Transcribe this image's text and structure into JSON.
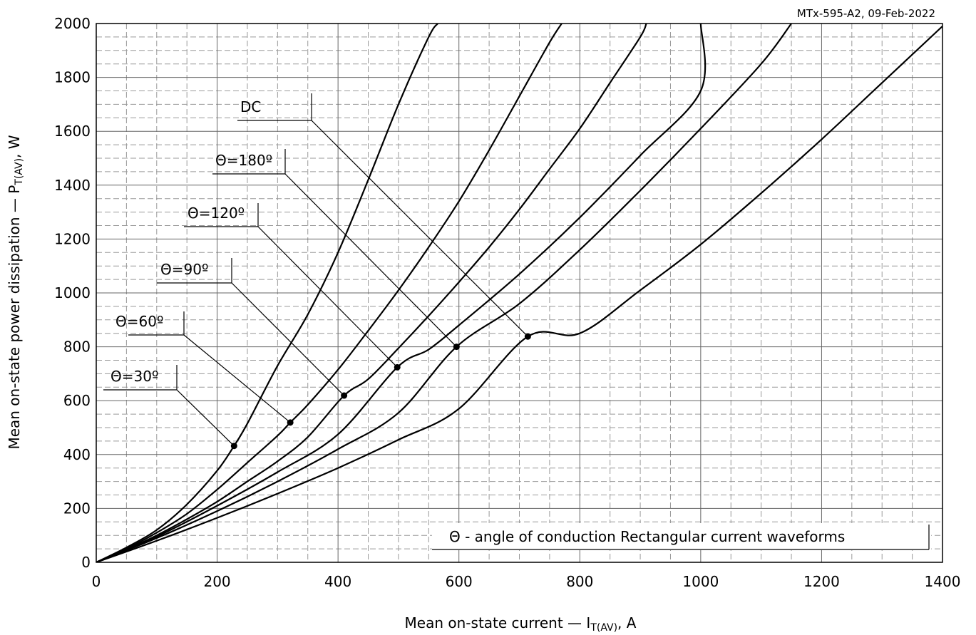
{
  "doc_ref": "MTx-595-A2, 09-Feb-2022",
  "chart_data": {
    "type": "line",
    "xlabel": {
      "main": "Mean on-state current — I",
      "sub": "T(AV)",
      "unit": ", A"
    },
    "ylabel": {
      "main": "Mean on-state power dissipation — P",
      "sub": "T(AV)",
      "unit": ", W"
    },
    "xlim": [
      0,
      1400
    ],
    "ylim": [
      0,
      2000
    ],
    "x_ticks": [
      0,
      200,
      400,
      600,
      800,
      1000,
      1200,
      1400
    ],
    "y_ticks": [
      0,
      200,
      400,
      600,
      800,
      1000,
      1200,
      1400,
      1600,
      1800,
      2000
    ],
    "x_minor_step": 50,
    "y_minor_step": 50,
    "grid": "major solid, minor dashed",
    "legend": "none",
    "series": [
      {
        "label": "Θ=30º",
        "marker": [
          228,
          432
        ],
        "points": [
          [
            0,
            0
          ],
          [
            50,
            55
          ],
          [
            100,
            120
          ],
          [
            150,
            215
          ],
          [
            200,
            340
          ],
          [
            228,
            432
          ],
          [
            250,
            515
          ],
          [
            300,
            730
          ],
          [
            350,
            920
          ],
          [
            400,
            1150
          ],
          [
            450,
            1420
          ],
          [
            500,
            1700
          ],
          [
            550,
            1950
          ],
          [
            565,
            2000
          ]
        ]
      },
      {
        "label": "Θ=60º",
        "marker": [
          321,
          519
        ],
        "points": [
          [
            0,
            0
          ],
          [
            50,
            50
          ],
          [
            100,
            110
          ],
          [
            150,
            180
          ],
          [
            200,
            270
          ],
          [
            250,
            370
          ],
          [
            300,
            470
          ],
          [
            321,
            519
          ],
          [
            350,
            585
          ],
          [
            400,
            715
          ],
          [
            450,
            860
          ],
          [
            500,
            1010
          ],
          [
            550,
            1170
          ],
          [
            600,
            1340
          ],
          [
            650,
            1530
          ],
          [
            700,
            1730
          ],
          [
            750,
            1930
          ],
          [
            770,
            2000
          ]
        ]
      },
      {
        "label": "Θ=90º",
        "marker": [
          410,
          619
        ],
        "points": [
          [
            0,
            0
          ],
          [
            50,
            47
          ],
          [
            100,
            100
          ],
          [
            150,
            160
          ],
          [
            200,
            225
          ],
          [
            250,
            300
          ],
          [
            300,
            375
          ],
          [
            350,
            465
          ],
          [
            410,
            619
          ],
          [
            450,
            680
          ],
          [
            500,
            795
          ],
          [
            550,
            915
          ],
          [
            600,
            1040
          ],
          [
            650,
            1170
          ],
          [
            700,
            1310
          ],
          [
            750,
            1460
          ],
          [
            800,
            1610
          ],
          [
            850,
            1780
          ],
          [
            900,
            1950
          ],
          [
            910,
            2000
          ]
        ]
      },
      {
        "label": "Θ=120º",
        "marker": [
          498,
          724
        ],
        "points": [
          [
            0,
            0
          ],
          [
            100,
            95
          ],
          [
            200,
            210
          ],
          [
            300,
            335
          ],
          [
            400,
            475
          ],
          [
            498,
            724
          ],
          [
            550,
            790
          ],
          [
            600,
            880
          ],
          [
            700,
            1070
          ],
          [
            800,
            1280
          ],
          [
            900,
            1510
          ],
          [
            1000,
            1750
          ],
          [
            1000,
            2000
          ]
        ]
      },
      {
        "label": "Θ=180º",
        "marker": [
          596,
          800
        ],
        "points": [
          [
            0,
            0
          ],
          [
            100,
            90
          ],
          [
            200,
            190
          ],
          [
            300,
            300
          ],
          [
            400,
            420
          ],
          [
            500,
            555
          ],
          [
            596,
            800
          ],
          [
            700,
            960
          ],
          [
            800,
            1160
          ],
          [
            900,
            1380
          ],
          [
            1000,
            1610
          ],
          [
            1100,
            1850
          ],
          [
            1150,
            2000
          ]
        ]
      },
      {
        "label": "DC",
        "marker": [
          714,
          838
        ],
        "points": [
          [
            0,
            0
          ],
          [
            100,
            80
          ],
          [
            200,
            165
          ],
          [
            300,
            255
          ],
          [
            400,
            350
          ],
          [
            500,
            455
          ],
          [
            600,
            570
          ],
          [
            714,
            838
          ],
          [
            800,
            850
          ],
          [
            900,
            1010
          ],
          [
            1000,
            1180
          ],
          [
            1100,
            1370
          ],
          [
            1200,
            1570
          ],
          [
            1300,
            1780
          ],
          [
            1400,
            1990
          ]
        ]
      }
    ],
    "annotation_box": "Θ - angle of conduction Rectangular current waveforms"
  }
}
